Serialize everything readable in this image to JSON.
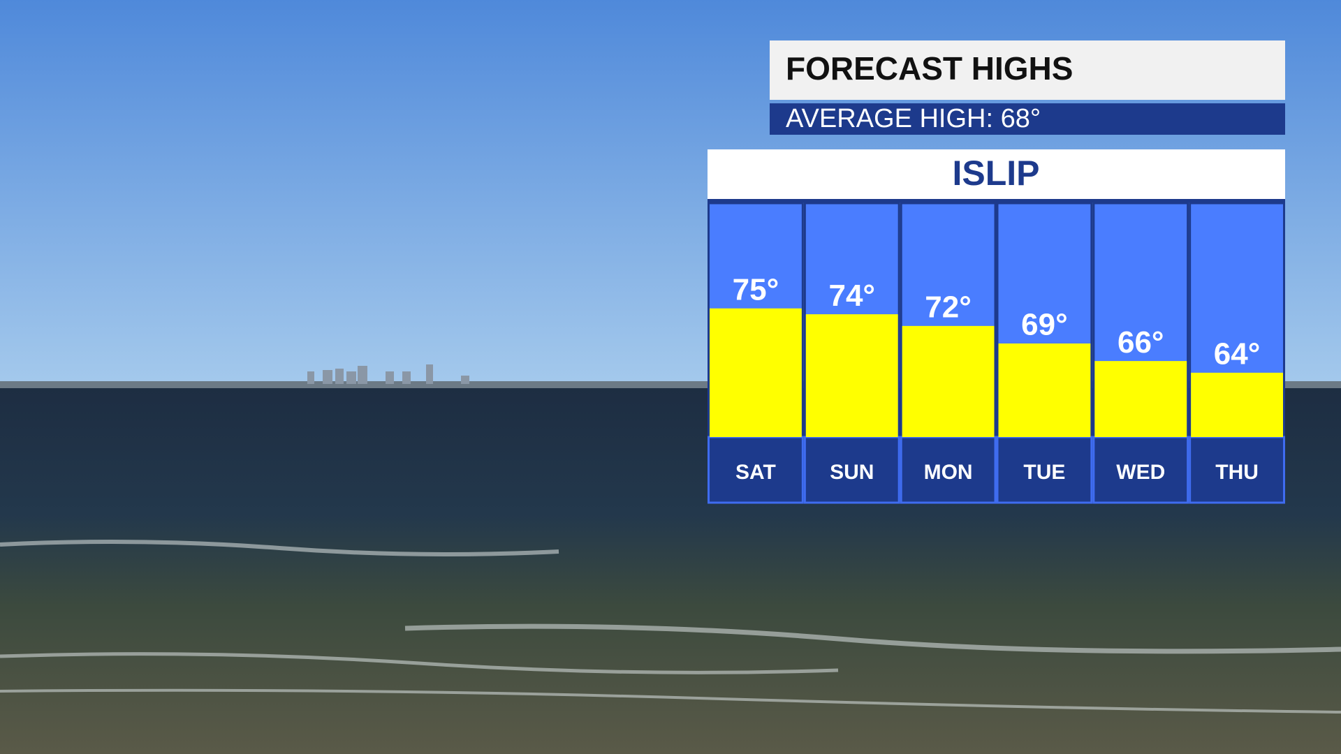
{
  "chart_data": {
    "type": "bar",
    "title": "FORECAST HIGHS",
    "subtitle": "AVERAGE HIGH: 68°",
    "location": "ISLIP",
    "categories": [
      "SAT",
      "SUN",
      "MON",
      "TUE",
      "WED",
      "THU"
    ],
    "values": [
      75,
      74,
      72,
      69,
      66,
      64
    ],
    "value_labels": [
      "75°",
      "74°",
      "72°",
      "69°",
      "66°",
      "64°"
    ],
    "color": "#ffff00",
    "ylim": [
      53,
      93
    ]
  }
}
